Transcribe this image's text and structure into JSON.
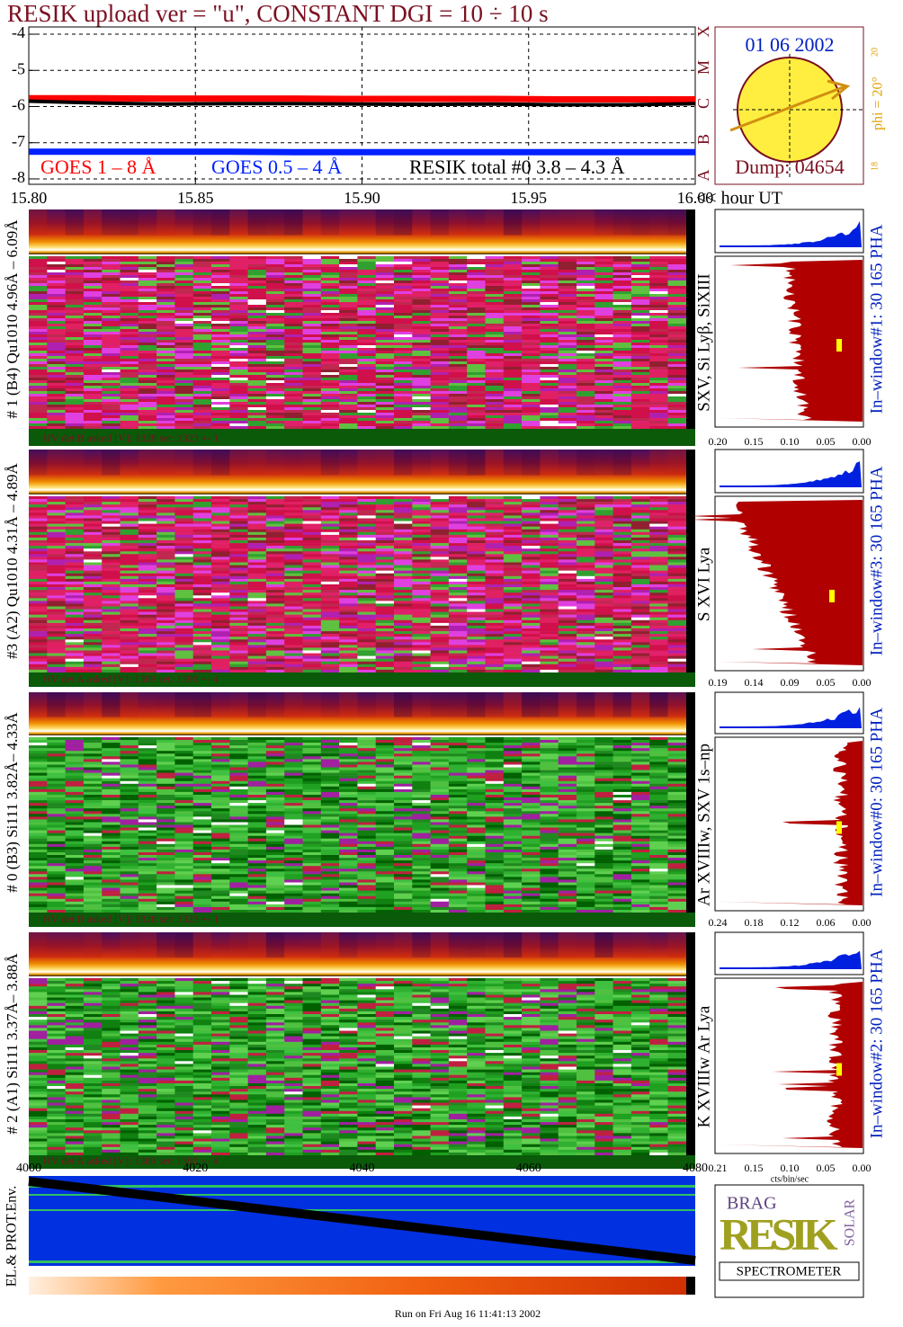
{
  "title": "RESIK upload ver = \"u\", CONSTANT  DGI =  10 ÷  10 s",
  "chart_data": {
    "type": "line",
    "x": [
      15.8,
      15.82,
      15.84,
      15.86,
      15.88,
      15.9,
      15.92,
      15.94,
      15.96,
      15.98,
      16.0
    ],
    "series": [
      {
        "name": "GOES 1 – 8 Å",
        "color": "#ff0000",
        "values": [
          -5.77,
          -5.77,
          -5.78,
          -5.78,
          -5.78,
          -5.79,
          -5.79,
          -5.79,
          -5.8,
          -5.8,
          -5.8
        ]
      },
      {
        "name": "GOES 0.5 – 4 Å",
        "color": "#0020ff",
        "values": [
          -7.25,
          -7.25,
          -7.25,
          -7.25,
          -7.26,
          -7.26,
          -7.26,
          -7.26,
          -7.26,
          -7.26,
          -7.26
        ]
      },
      {
        "name": "RESIK total #0  3.8 – 4.3 Å",
        "color": "#000000",
        "values": [
          -5.85,
          -5.9,
          -5.93,
          -5.92,
          -5.92,
          -5.93,
          -5.94,
          -5.93,
          -5.95,
          -5.95,
          -5.92
        ]
      }
    ],
    "xlim": [
      15.8,
      16.0
    ],
    "xticks": [
      {
        "value": 15.8,
        "label": "15.80"
      },
      15.85,
      {
        "value": 15.9,
        "label": "15.90"
      },
      15.95,
      {
        "value": 16.0,
        "label": "16.00"
      }
    ],
    "xlabel": "<< hour UT",
    "ylim": [
      -8.15,
      -3.8
    ],
    "yticks": [
      -4,
      -5,
      -6,
      -7,
      -8
    ],
    "grid": true
  },
  "date_box": {
    "date": "01 06 2002",
    "dump": "Dump: 04654",
    "phi": "phi = 20°",
    "phi_top": "20",
    "phi_bottom": "18",
    "classes": [
      "A",
      "B",
      "C",
      "M",
      "X"
    ]
  },
  "panels": [
    {
      "label": "# 1 (B4) Qu1010 4.96Å – 6.09Å",
      "lines": "SXV, Si Lyβ, SiXIII",
      "hv": "HV det B asked [V]:  1328 set:  1323 +-    1",
      "window": "In–window#1:   30 165 PHA",
      "hist_ticks": [
        "0.20",
        "0.15",
        "0.10",
        "0.05",
        "0.00"
      ]
    },
    {
      "label": "#3 (A2) Qu1010  4.31Å – 4.89Å",
      "lines": "S XVI Lya",
      "hv": "HV det A asked [V]:  1389 set:  1390 +-    4",
      "window": "In–window#3:   30 165 PHA",
      "hist_ticks": [
        "0.19",
        "0.14",
        "0.09",
        "0.05",
        "0.00"
      ]
    },
    {
      "label": "# 0 (B3) Si111  3.82Å– 4.33Å",
      "lines": "Ar XVIIIw,  SXV  1s–np",
      "hv": "HV det B asked [V]:  1328 set:  1323 +-    1",
      "window": "In–window#0:   30 165 PHA",
      "hist_ticks": [
        "0.24",
        "0.18",
        "0.12",
        "0.06",
        "0.00"
      ]
    },
    {
      "label": "# 2 (A1) Si111  3.37Å– 3.88Å",
      "lines": "K XVIIIw    Ar Lya",
      "hv": "HV det A asked [V]:  1389 set:  1390 +-    4",
      "window": "In–window#2:   30 165 PHA",
      "hist_ticks": [
        "0.21",
        "0.15",
        "0.10",
        "0.05",
        "0.00"
      ]
    }
  ],
  "hist_unit": "cts/bin/sec",
  "bottom_axis": [
    "4000",
    "4020",
    "4040",
    "4060",
    "4080"
  ],
  "env_label": "EL.& PROT.Env.",
  "logo": {
    "brag": "BRAG",
    "resik": "RESIK",
    "solar": "SOLAR",
    "spectrometer": "SPECTROMETER"
  },
  "footer": "Run on Fri Aug 16 11:41:13 2002"
}
